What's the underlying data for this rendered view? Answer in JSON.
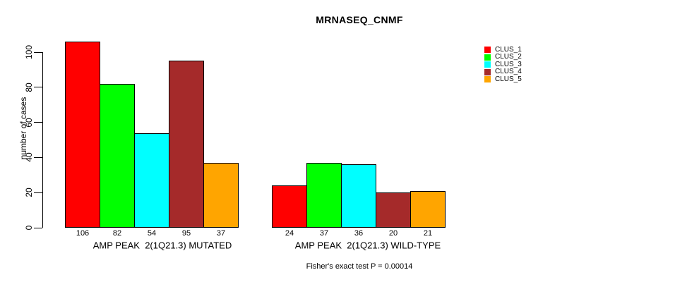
{
  "chart_data": {
    "type": "bar",
    "title": "MRNASEQ_CNMF",
    "ylabel": "number of cases",
    "xlabel": "",
    "categories": [
      "AMP PEAK  2(1Q21.3) MUTATED",
      "AMP PEAK  2(1Q21.3) WILD-TYPE"
    ],
    "series": [
      {
        "name": "CLUS_1",
        "color": "#FF0000",
        "values": [
          106,
          24
        ]
      },
      {
        "name": "CLUS_2",
        "color": "#00FF00",
        "values": [
          82,
          37
        ]
      },
      {
        "name": "CLUS_3",
        "color": "#00FFFF",
        "values": [
          54,
          36
        ]
      },
      {
        "name": "CLUS_4",
        "color": "#A52A2A",
        "values": [
          95,
          20
        ]
      },
      {
        "name": "CLUS_5",
        "color": "#FFA500",
        "values": [
          37,
          21
        ]
      }
    ],
    "yticks": [
      0,
      20,
      40,
      60,
      80,
      100
    ],
    "ylim": [
      0,
      106
    ],
    "bar_value_labels": true,
    "annotation": "Fisher's exact test P = 0.00014",
    "legend_position": "top-right",
    "grid": false,
    "axis_color": "#000000",
    "bar_border_color": "#000000"
  }
}
